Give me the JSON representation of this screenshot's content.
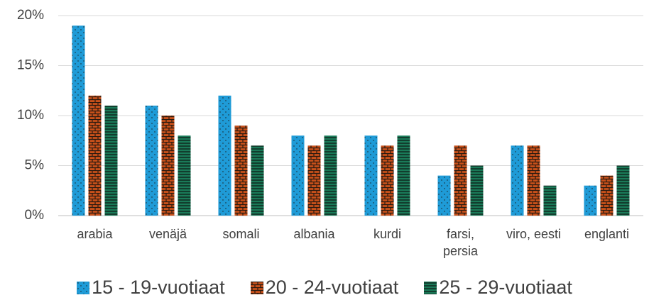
{
  "chart_data": {
    "type": "bar",
    "categories": [
      "arabia",
      "venäjä",
      "somali",
      "albania",
      "kurdi",
      "farsi,\npersia",
      "viro, eesti",
      "englanti"
    ],
    "series": [
      {
        "name": "15 - 19-vuotiaat",
        "color": "#1f9bd7",
        "values": [
          19,
          11,
          12,
          8,
          8,
          4,
          7,
          3
        ]
      },
      {
        "name": "20 - 24-vuotiaat",
        "color": "#c8501a",
        "values": [
          12,
          10,
          9,
          7,
          7,
          7,
          7,
          4
        ]
      },
      {
        "name": "25 - 29-vuotiaat",
        "color": "#1a7a58",
        "values": [
          11,
          8,
          7,
          8,
          8,
          5,
          3,
          5
        ]
      }
    ],
    "ylim": [
      0,
      20
    ],
    "yticks": [
      {
        "value": 0,
        "label": "0%"
      },
      {
        "value": 5,
        "label": "5%"
      },
      {
        "value": 10,
        "label": "10%"
      },
      {
        "value": 15,
        "label": "15%"
      },
      {
        "value": 20,
        "label": "20%"
      }
    ],
    "grid": true,
    "legend": "bottom"
  }
}
